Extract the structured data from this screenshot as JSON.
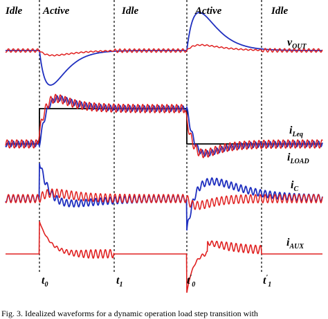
{
  "phases": [
    "Idle",
    "Active",
    "Idle",
    "Active",
    "Idle"
  ],
  "signals": [
    {
      "label": "v",
      "sub": "OUT"
    },
    {
      "label": "i",
      "sub": "Leq"
    },
    {
      "label": "i",
      "sub": "LOAD"
    },
    {
      "label": "i",
      "sub": "C"
    },
    {
      "label": "i",
      "sub": "AUX"
    }
  ],
  "times": [
    {
      "label": "t",
      "sub": "0"
    },
    {
      "label": "t",
      "sub": "1"
    },
    {
      "label": "t",
      "sub": "0",
      "prime": "′"
    },
    {
      "label": "t",
      "sub": "1",
      "prime": "′"
    }
  ],
  "caption": "Fig. 3.   Idealized waveforms for a dynamic operation load step transition with"
}
